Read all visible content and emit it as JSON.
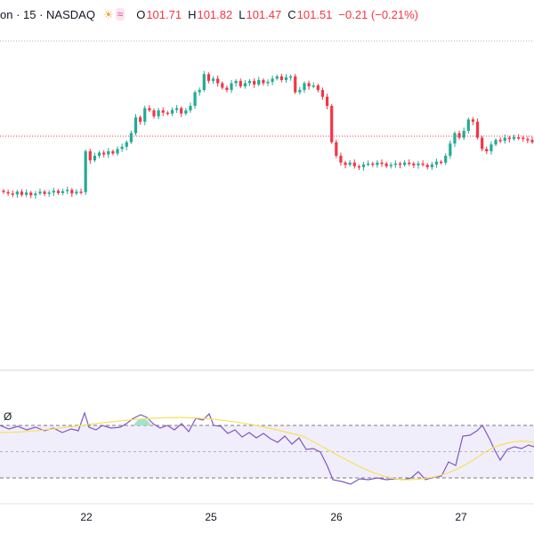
{
  "legend": {
    "title": "on · 15 · NASDAQ",
    "icons": [
      "sun-icon",
      "wave-icon"
    ],
    "ohlc": [
      {
        "key": "O",
        "value": "101.71"
      },
      {
        "key": "H",
        "value": "101.82"
      },
      {
        "key": "L",
        "value": "101.47"
      },
      {
        "key": "C",
        "value": "101.51"
      }
    ],
    "change": "−0.21 (−0.21%)"
  },
  "indicator": {
    "label": "Ø"
  },
  "colors": {
    "up": "#22ab94",
    "down": "#f23645",
    "indicator_line": "#7e57c2",
    "signal_line": "#f7e157",
    "band_fill": "#f1eefb",
    "overbought_fill": "#9fe3cf"
  },
  "chart_data": {
    "type": "candlestick",
    "x_tick_labels": [
      "22",
      "25",
      "26",
      "27"
    ],
    "price_reference_line": 101.71,
    "rsi_levels": [
      70,
      50,
      30
    ]
  }
}
